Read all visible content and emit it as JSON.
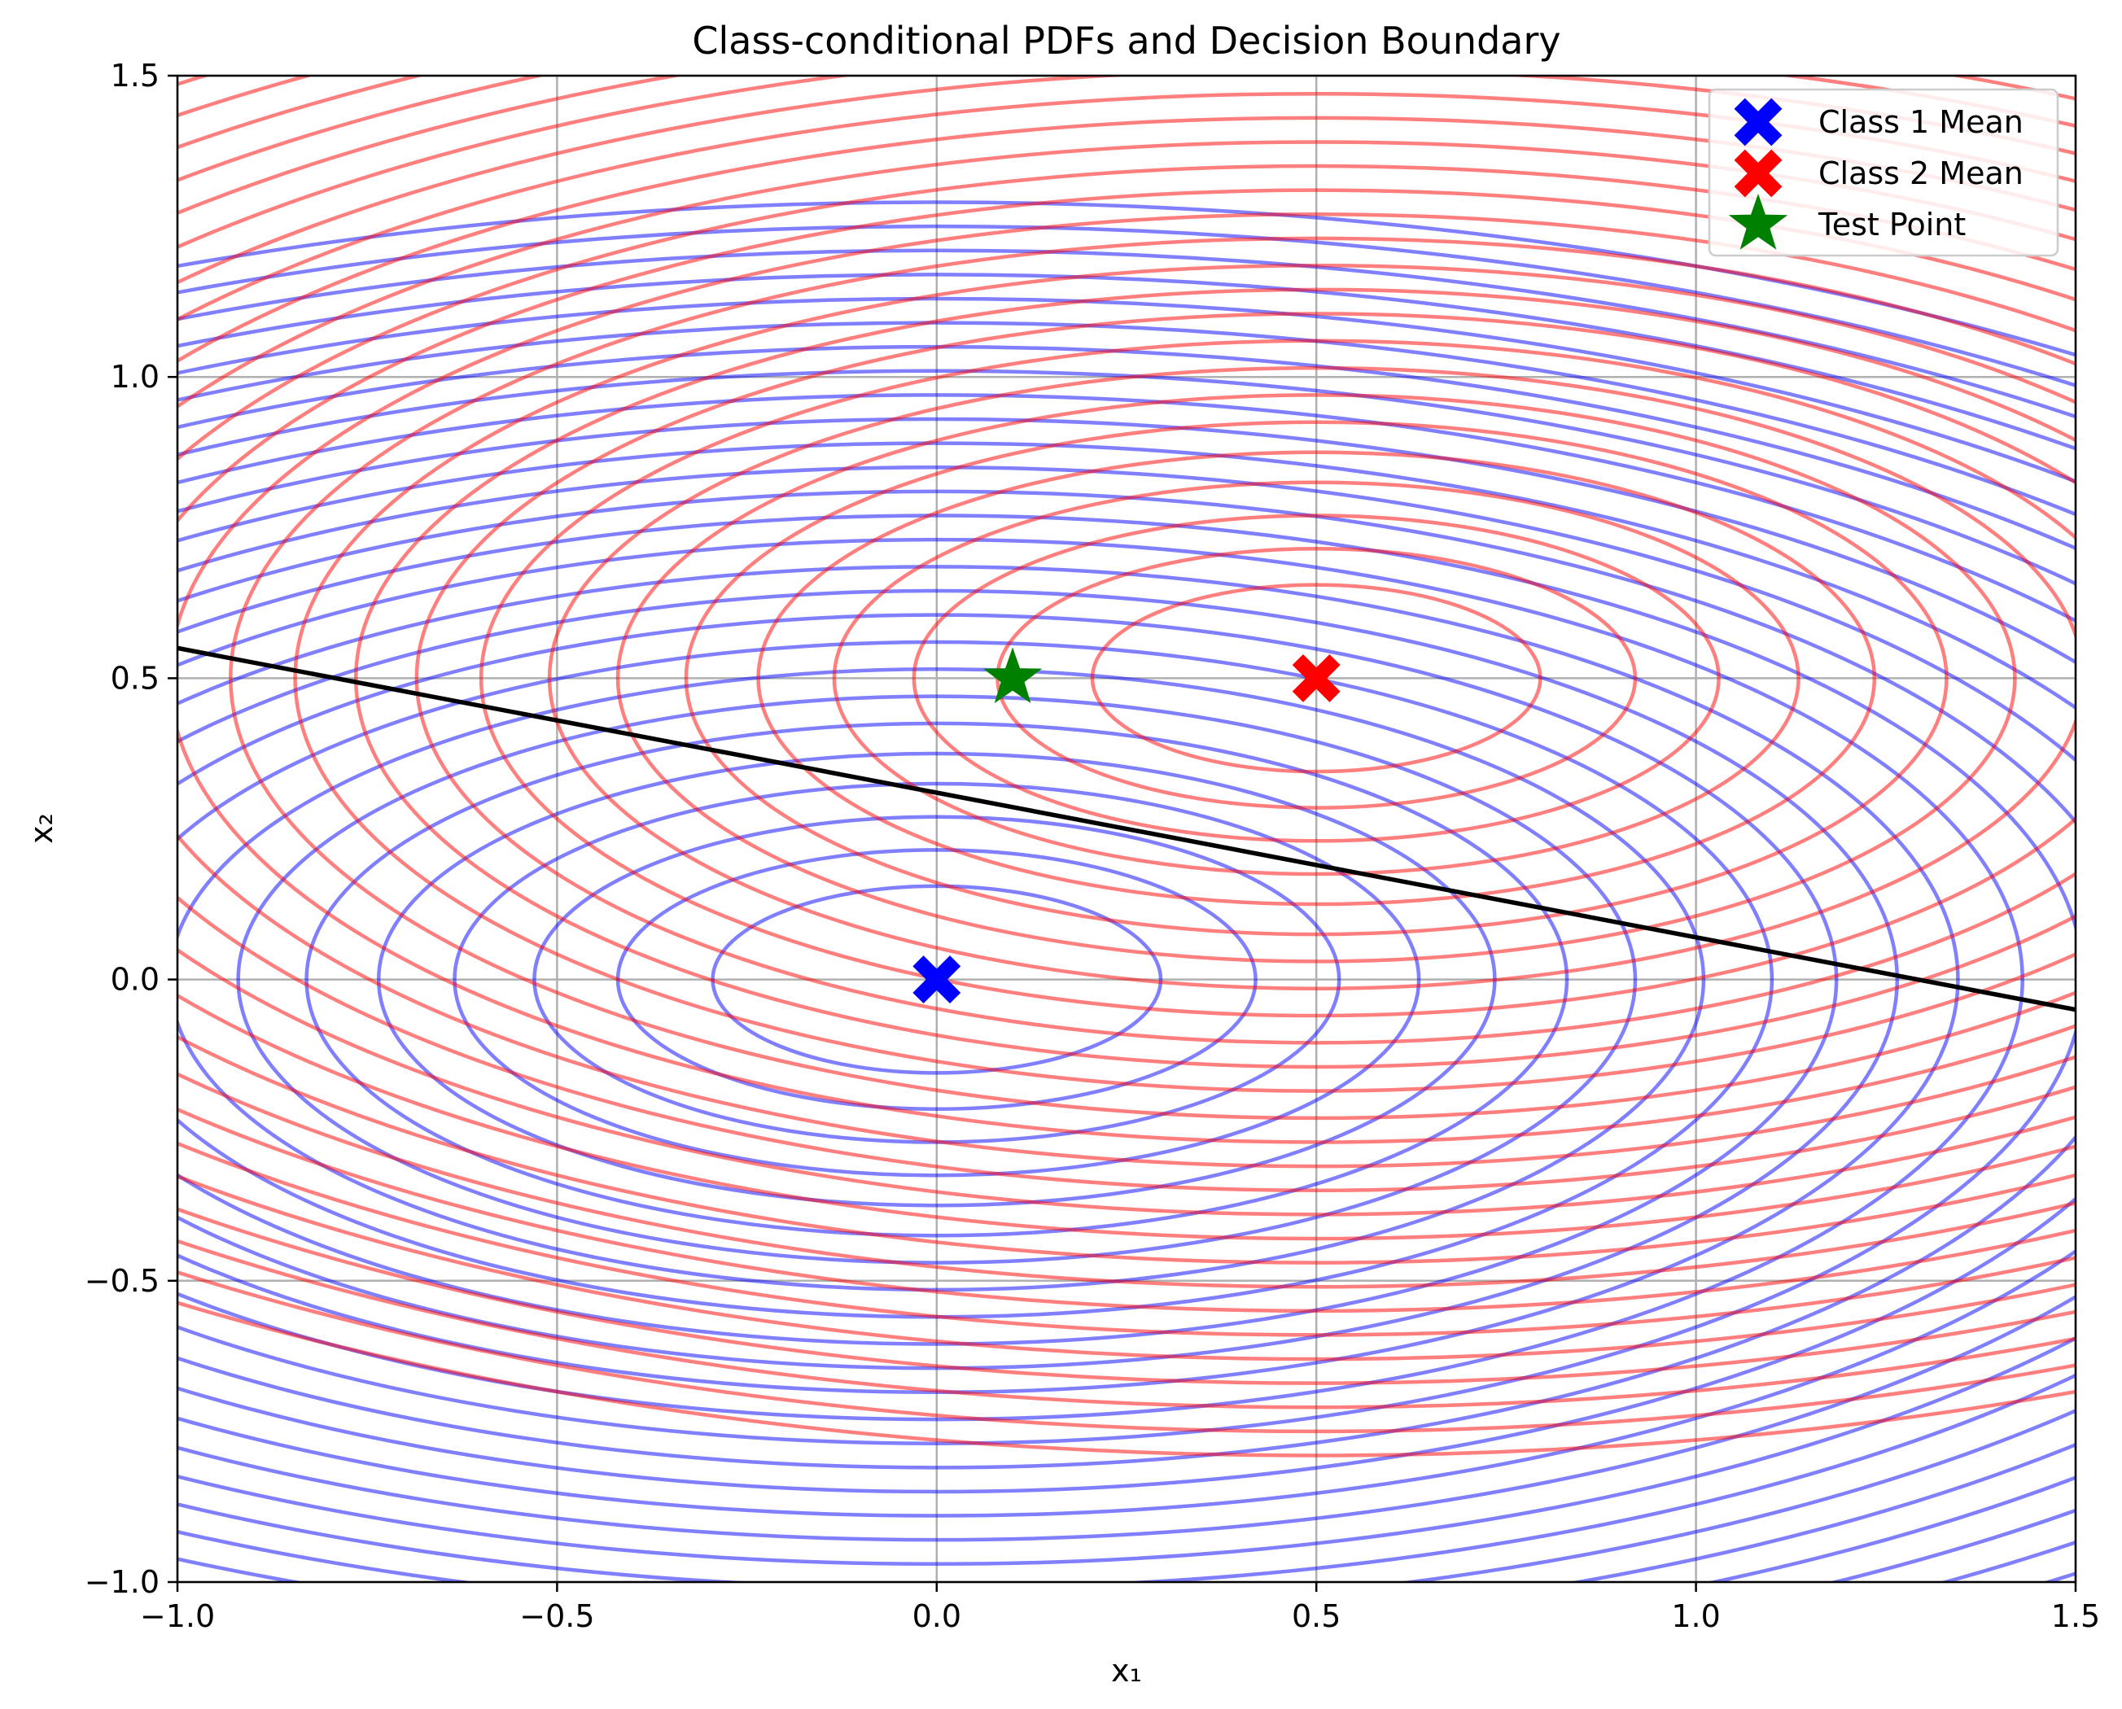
{
  "chart_data": {
    "type": "line",
    "title": "Class-conditional PDFs and Decision Boundary",
    "xlabel": "x₁",
    "ylabel": "x₂",
    "xlim": [
      -1.0,
      1.5
    ],
    "ylim": [
      -1.0,
      1.5
    ],
    "xticks": [
      "−1.0",
      "−0.5",
      "0.0",
      "0.5",
      "1.0",
      "1.5"
    ],
    "yticks": [
      "−1.0",
      "−0.5",
      "0.0",
      "0.5",
      "1.0",
      "1.5"
    ],
    "xtick_values": [
      -1.0,
      -0.5,
      0.0,
      0.5,
      1.0,
      1.5
    ],
    "ytick_values": [
      -1.0,
      -0.5,
      0.0,
      0.5,
      1.0,
      1.5
    ],
    "grid": true,
    "legend_placement": "top-right",
    "contours": [
      {
        "class": "Class 1",
        "center": [
          0.0,
          0.0
        ],
        "semi_axis_x": [
          0.295,
          0.42,
          0.53,
          0.635,
          0.735,
          0.83,
          0.92,
          1.01,
          1.1,
          1.185,
          1.265,
          1.345,
          1.43,
          1.51,
          1.585,
          1.66,
          1.74,
          1.82,
          1.9,
          1.975,
          2.05,
          2.125,
          2.2,
          2.28,
          2.36,
          2.44,
          2.52
        ],
        "semi_axis_y": [
          0.155,
          0.215,
          0.27,
          0.325,
          0.375,
          0.425,
          0.47,
          0.515,
          0.56,
          0.605,
          0.645,
          0.685,
          0.73,
          0.77,
          0.81,
          0.85,
          0.89,
          0.93,
          0.97,
          1.01,
          1.05,
          1.09,
          1.13,
          1.17,
          1.21,
          1.25,
          1.29
        ],
        "color": "#0000ff",
        "opacity": 0.5
      },
      {
        "class": "Class 2",
        "center": [
          0.5,
          0.5
        ],
        "semi_axis_x": [
          0.295,
          0.42,
          0.53,
          0.635,
          0.735,
          0.83,
          0.92,
          1.01,
          1.1,
          1.185,
          1.265,
          1.345,
          1.43,
          1.51,
          1.585,
          1.66,
          1.74,
          1.82,
          1.9,
          1.975,
          2.05,
          2.125,
          2.2,
          2.28,
          2.36,
          2.44,
          2.52
        ],
        "semi_axis_y": [
          0.155,
          0.215,
          0.27,
          0.325,
          0.375,
          0.425,
          0.47,
          0.515,
          0.56,
          0.605,
          0.645,
          0.685,
          0.73,
          0.77,
          0.81,
          0.85,
          0.89,
          0.93,
          0.97,
          1.01,
          1.05,
          1.09,
          1.13,
          1.17,
          1.21,
          1.25,
          1.29
        ],
        "color": "#ff0000",
        "opacity": 0.5
      }
    ],
    "decision_boundary": {
      "points": [
        [
          -1.0,
          0.55
        ],
        [
          1.5,
          -0.05
        ]
      ],
      "color": "#000000"
    },
    "markers": [
      {
        "label": "Class 1 Mean",
        "x": 0.0,
        "y": 0.0,
        "shape": "X",
        "color": "#0000ff"
      },
      {
        "label": "Class 2 Mean",
        "x": 0.5,
        "y": 0.5,
        "shape": "X",
        "color": "#ff0000"
      },
      {
        "label": "Test Point",
        "x": 0.1,
        "y": 0.5,
        "shape": "star",
        "color": "#008000"
      }
    ],
    "legend": [
      {
        "label": "Class 1 Mean",
        "shape": "X",
        "color": "#0000ff"
      },
      {
        "label": "Class 2 Mean",
        "shape": "X",
        "color": "#ff0000"
      },
      {
        "label": "Test Point",
        "shape": "star",
        "color": "#008000"
      }
    ]
  }
}
